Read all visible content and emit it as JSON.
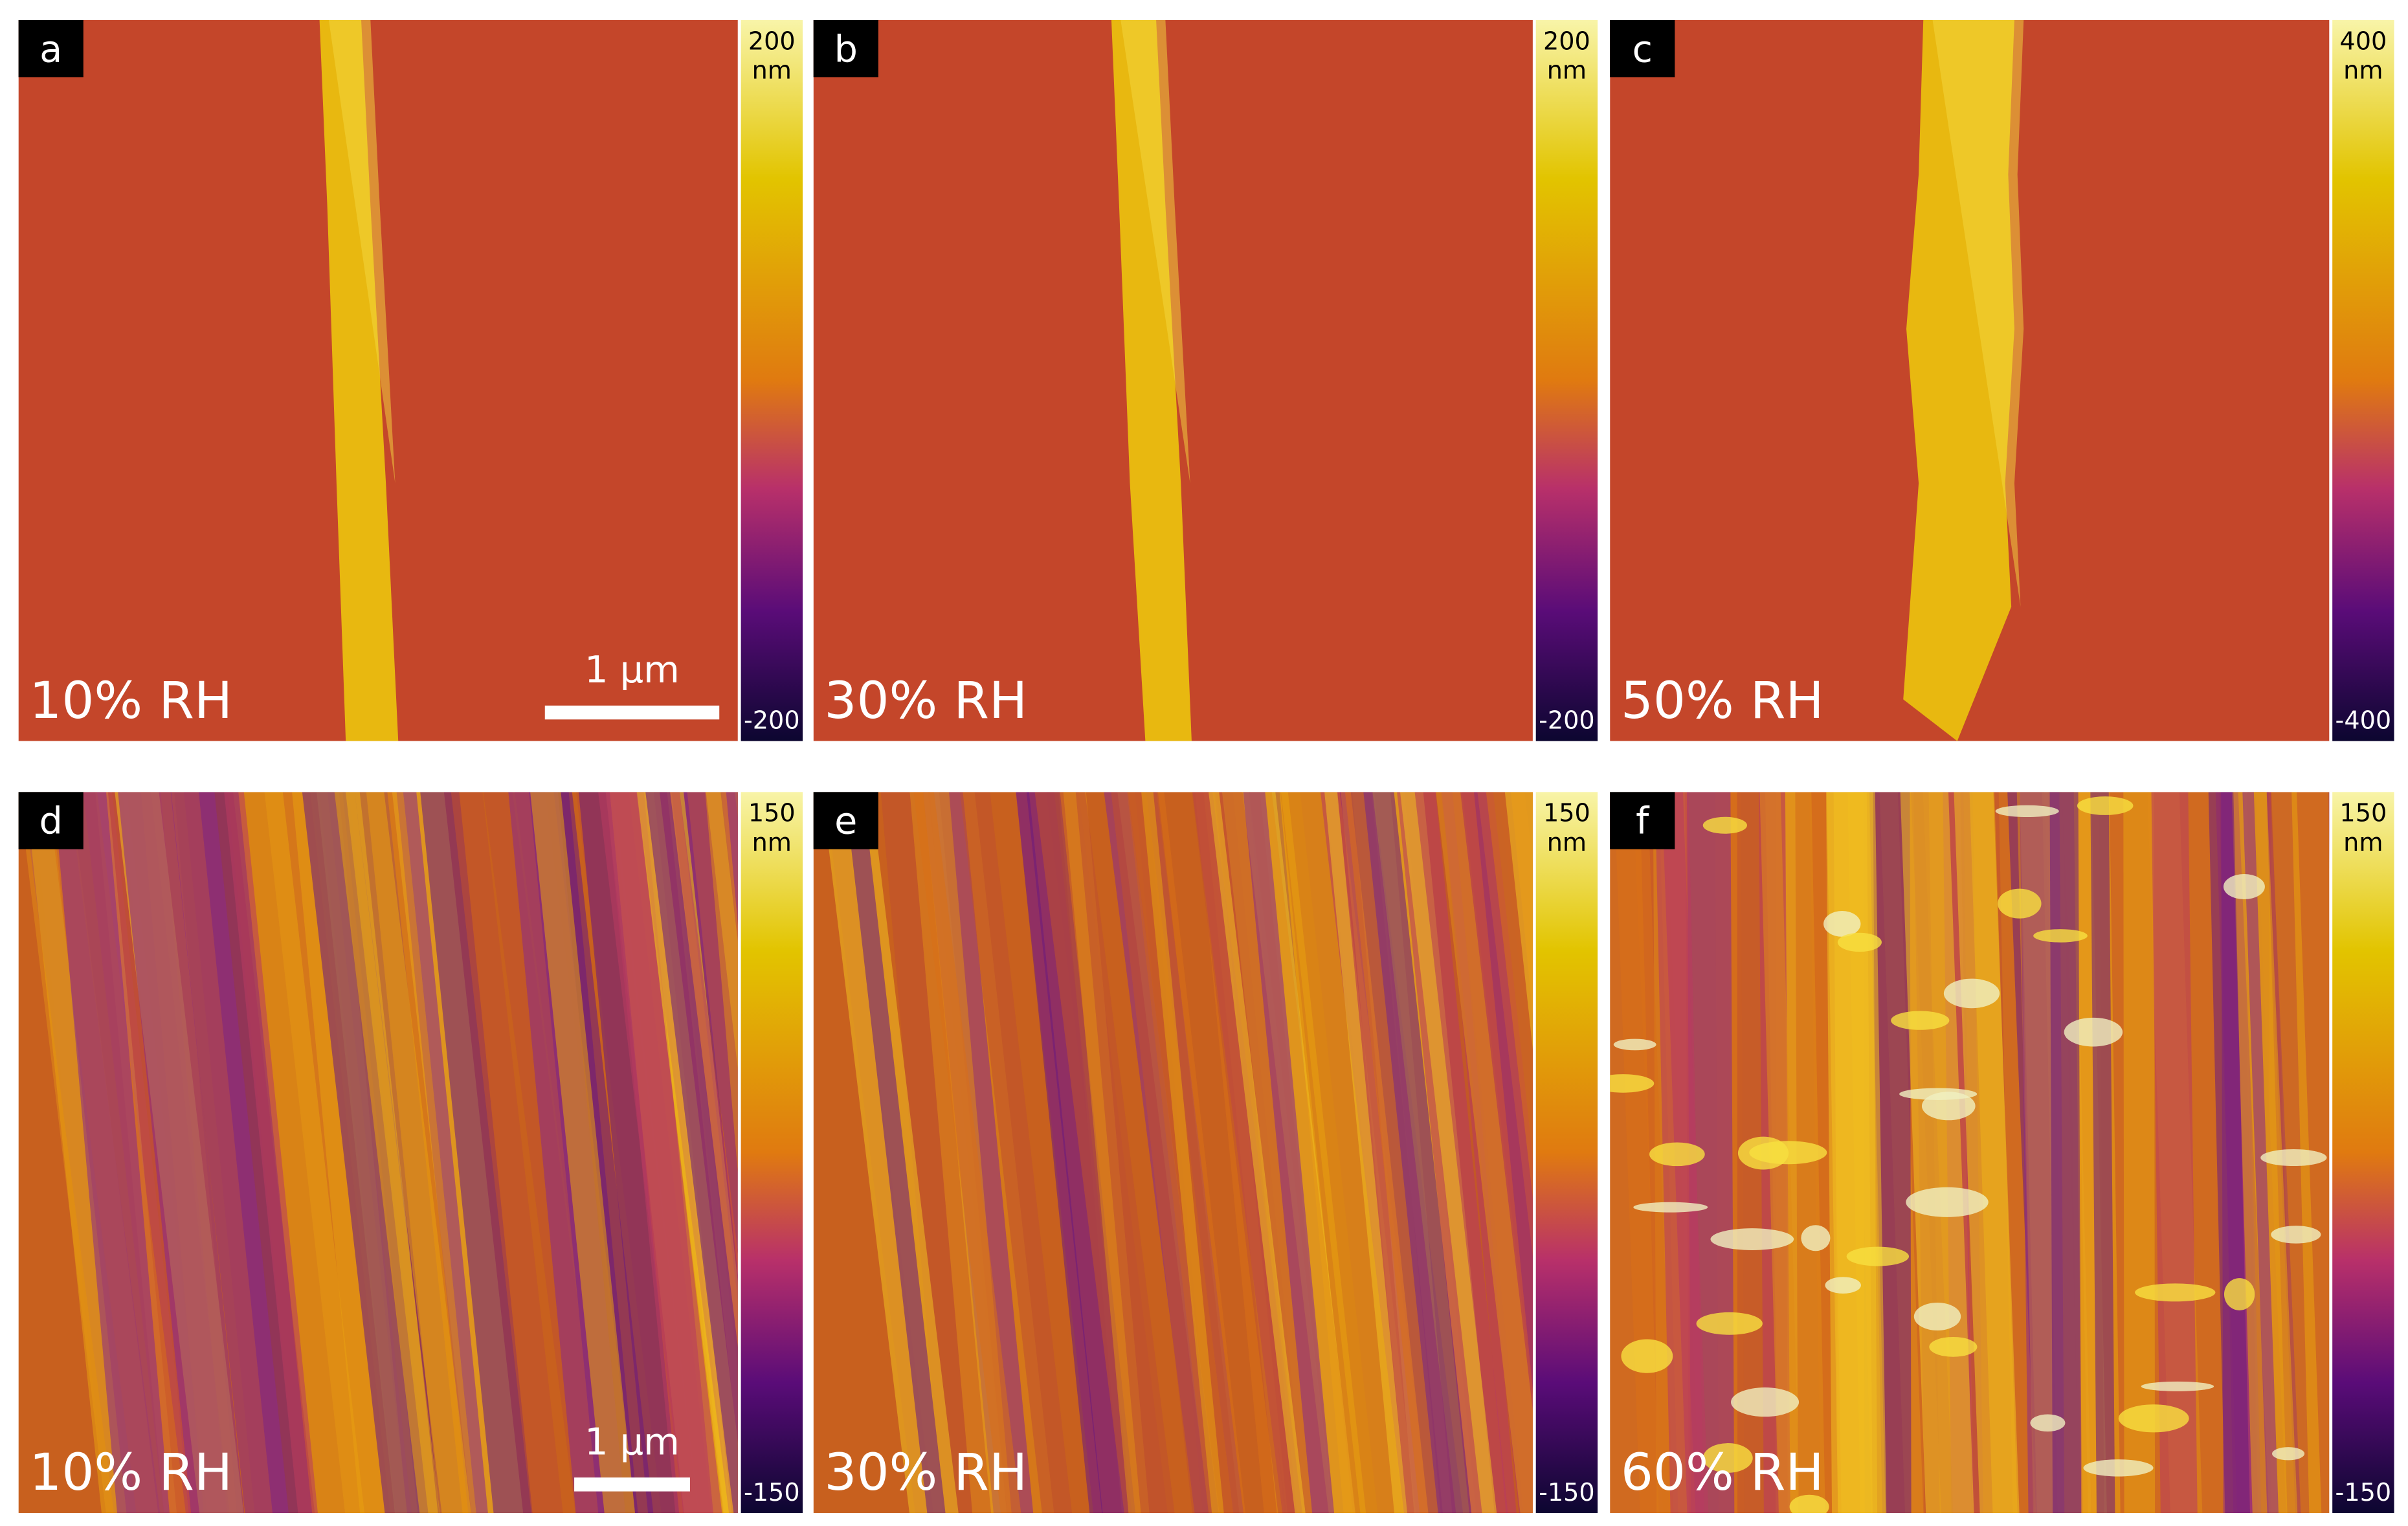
{
  "panels": [
    {
      "label": "a",
      "condition": "10% RH",
      "colorbar": {
        "max": 200,
        "unit": "nm",
        "min": -200
      },
      "scale_bar": "1 µm"
    },
    {
      "label": "b",
      "condition": "30% RH",
      "colorbar": {
        "max": 200,
        "unit": "nm",
        "min": -200
      }
    },
    {
      "label": "c",
      "condition": "50% RH",
      "colorbar": {
        "max": 400,
        "unit": "nm",
        "min": -400
      }
    },
    {
      "label": "d",
      "condition": "10% RH",
      "colorbar": {
        "max": 150,
        "unit": "nm",
        "min": -150
      },
      "scale_bar": "1 µm"
    },
    {
      "label": "e",
      "condition": "30% RH",
      "colorbar": {
        "max": 150,
        "unit": "nm",
        "min": -150
      }
    },
    {
      "label": "f",
      "condition": "60% RH",
      "colorbar": {
        "max": 150,
        "unit": "nm",
        "min": -150
      }
    }
  ]
}
